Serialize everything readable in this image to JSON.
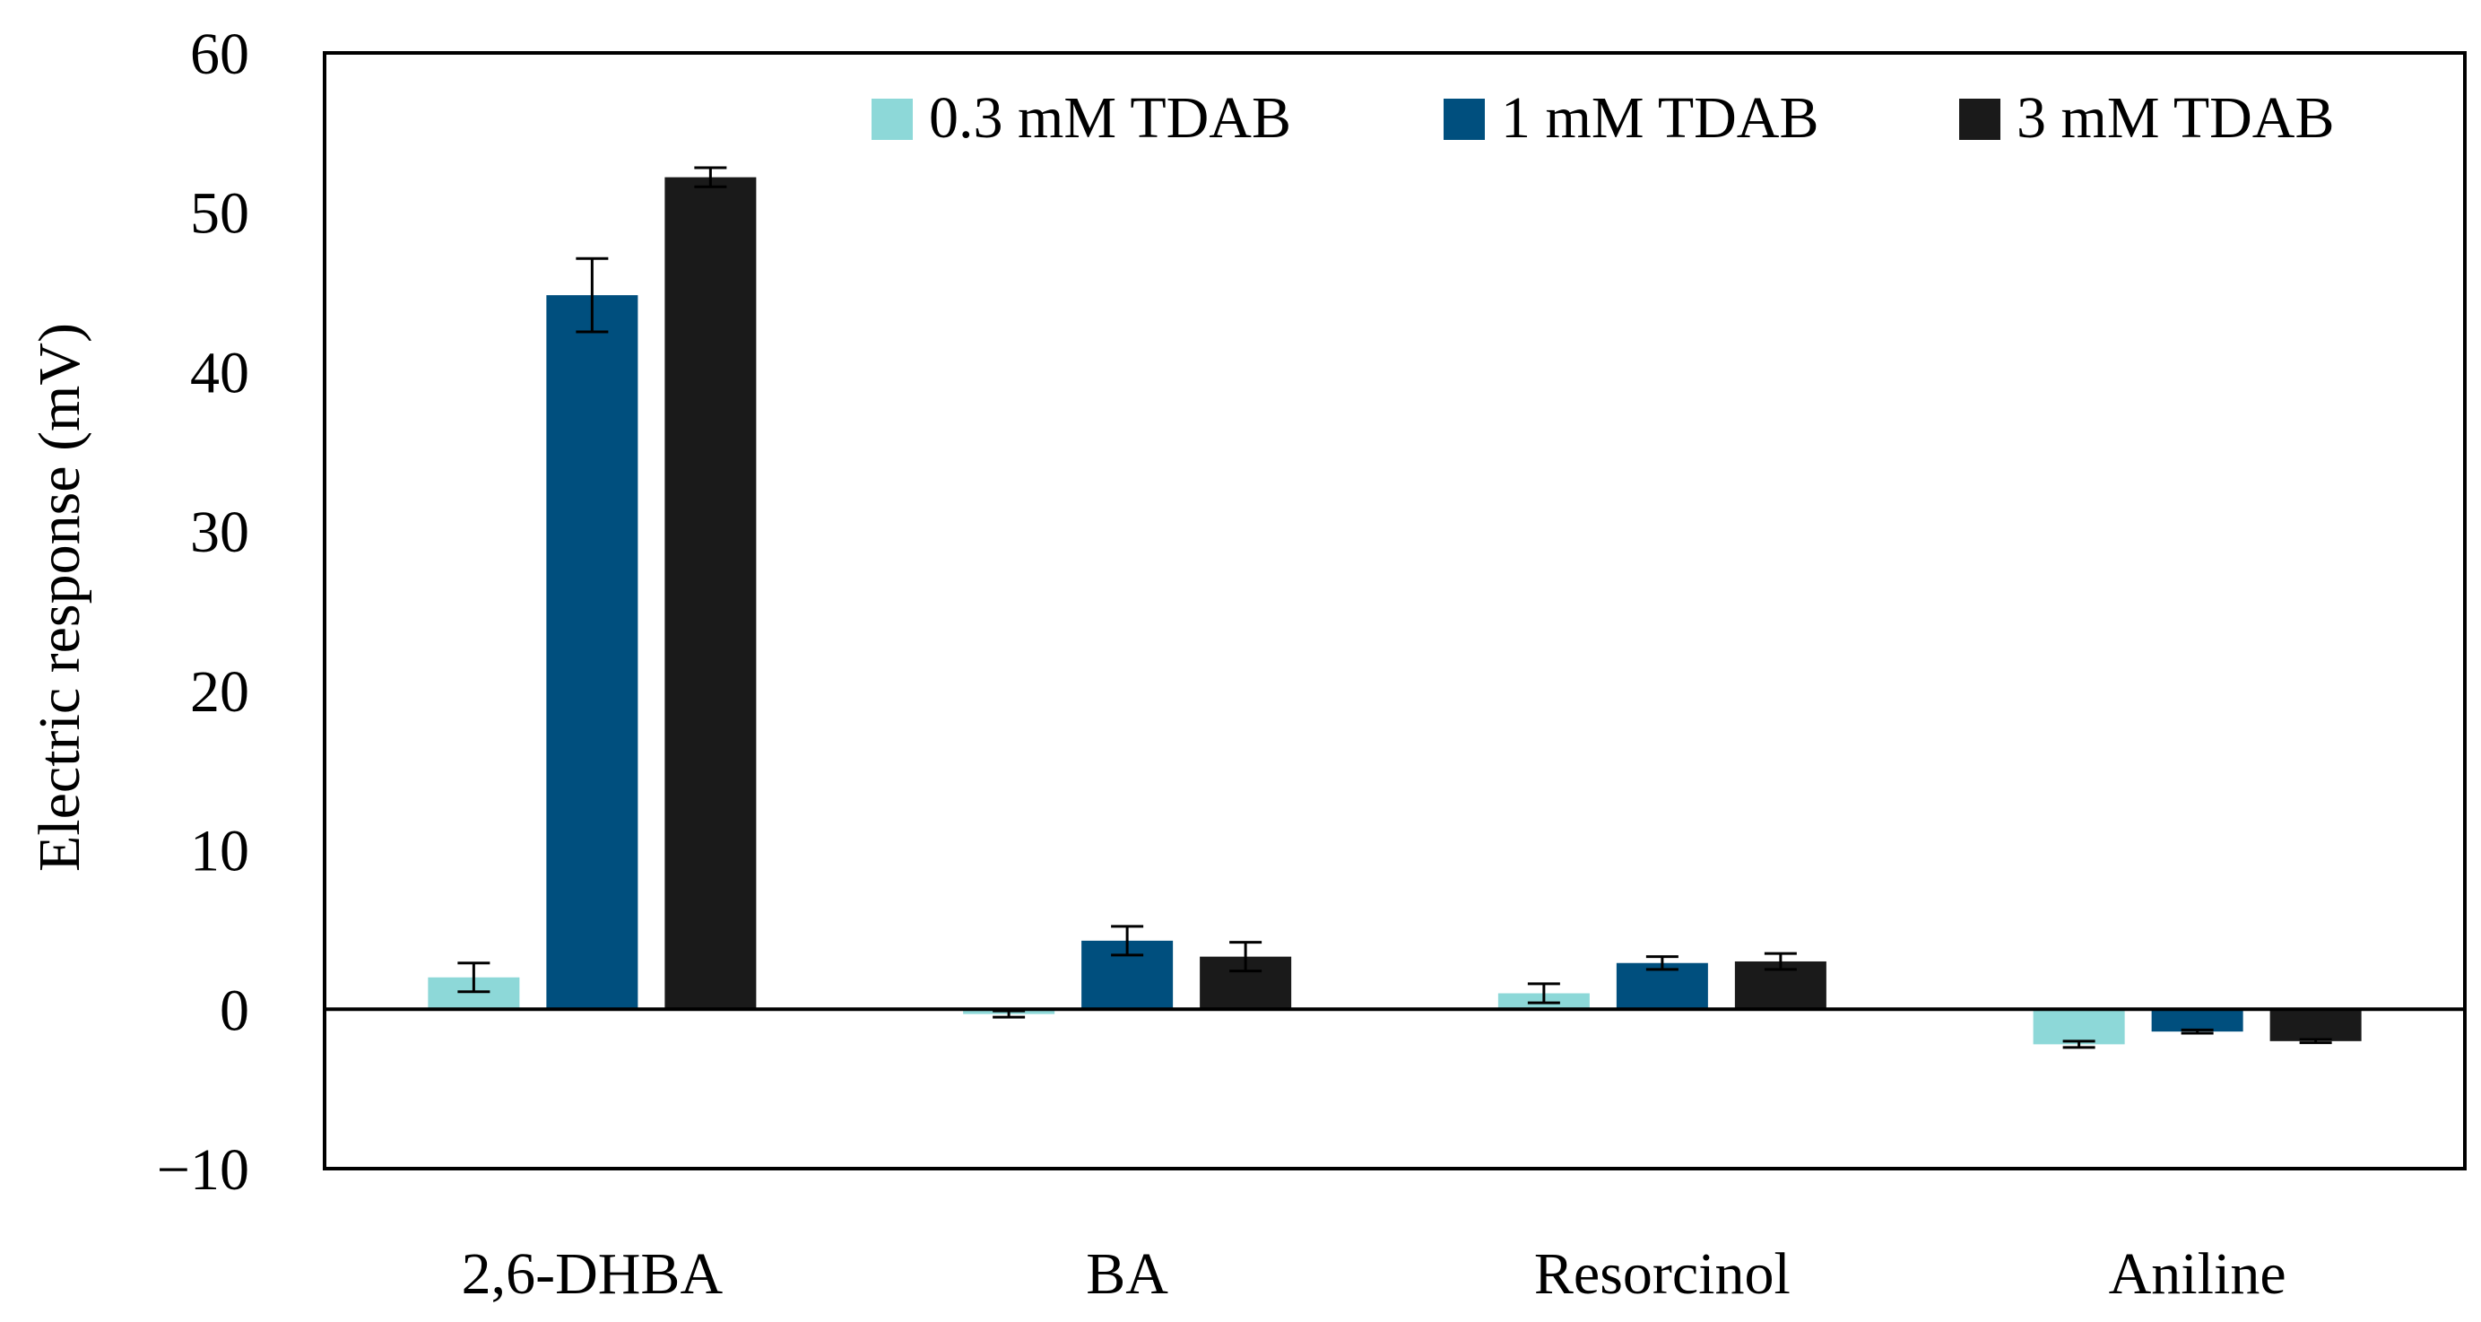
{
  "chart_data": {
    "type": "bar",
    "title": "",
    "xlabel": "",
    "ylabel": "Electric response (mV)",
    "ylim": [
      -10,
      60
    ],
    "yticks": [
      -10,
      0,
      10,
      20,
      30,
      40,
      50,
      60
    ],
    "ytick_labels": [
      "−10",
      "0",
      "10",
      "20",
      "30",
      "40",
      "50",
      "60"
    ],
    "grid": false,
    "legend_position": "top-right",
    "categories": [
      "2,6-DHBA",
      "BA",
      "Resorcinol",
      "Aniline"
    ],
    "series": [
      {
        "name": "0.3 mM TDAB",
        "color": "#8dd8d8",
        "values": [
          2.0,
          -0.3,
          1.0,
          -2.2
        ],
        "errors": [
          0.9,
          0.2,
          0.6,
          0.2
        ]
      },
      {
        "name": "1 mM TDAB",
        "color": "#004f7e",
        "values": [
          44.8,
          4.3,
          2.9,
          -1.4
        ],
        "errors": [
          2.3,
          0.9,
          0.4,
          0.1
        ]
      },
      {
        "name": "3 mM TDAB",
        "color": "#1a1a1a",
        "values": [
          52.2,
          3.3,
          3.0,
          -2.0
        ],
        "errors": [
          0.6,
          0.9,
          0.5,
          0.1
        ]
      }
    ]
  }
}
